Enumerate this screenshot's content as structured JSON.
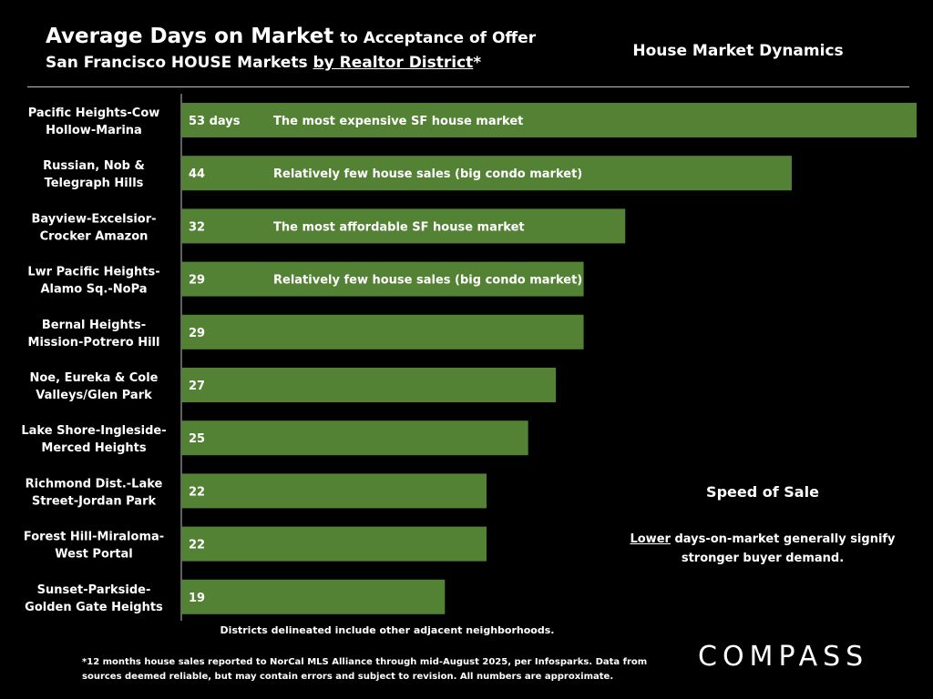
{
  "header": {
    "title_bold": "Average Days on Market",
    "title_rest": "to Acceptance of Offer",
    "subtitle_prefix": "San Francisco HOUSE Markets",
    "subtitle_link": "by Realtor District",
    "subtitle_suffix": "*",
    "right_heading": "House Market Dynamics"
  },
  "colors": {
    "bar": "#548235",
    "background": "#000000",
    "text": "#ffffff"
  },
  "chart_data": {
    "type": "bar",
    "orientation": "horizontal",
    "categories": [
      [
        "Pacific Heights-Cow",
        "Hollow-Marina"
      ],
      [
        "Russian, Nob &",
        "Telegraph Hills"
      ],
      [
        "Bayview-Excelsior-",
        "Crocker Amazon"
      ],
      [
        "Lwr Pacific Heights-",
        "Alamo Sq.-NoPa"
      ],
      [
        "Bernal Heights-",
        "Mission-Potrero Hill"
      ],
      [
        "Noe, Eureka & Cole",
        "Valleys/Glen Park"
      ],
      [
        "Lake Shore-Ingleside-",
        "Merced Heights"
      ],
      [
        "Richmond Dist.-Lake",
        "Street-Jordan Park"
      ],
      [
        "Forest Hill-Miraloma-",
        "West Portal"
      ],
      [
        "Sunset-Parkside-",
        "Golden Gate Heights"
      ]
    ],
    "values": [
      53,
      44,
      32,
      29,
      29,
      27,
      25,
      22,
      22,
      19
    ],
    "value_labels": [
      "53 days",
      "44",
      "32",
      "29",
      "29",
      "27",
      "25",
      "22",
      "22",
      "19"
    ],
    "annotations": [
      "The most expensive SF house market",
      "Relatively few house sales (big condo market)",
      "The most affordable SF house market",
      "Relatively few house sales (big condo market)",
      "",
      "",
      "",
      "",
      "",
      ""
    ],
    "xlim": [
      0,
      53
    ]
  },
  "side_note": {
    "title": "Speed of Sale",
    "emphasis": "Lower",
    "text": " days-on-market generally signify stronger buyer demand."
  },
  "districts_note": "Districts delineated include other adjacent neighborhoods.",
  "footnote": "*12 months house sales reported to NorCal MLS Alliance through mid-August 2025, per Infosparks. Data from sources deemed reliable, but may contain errors and subject to revision. All numbers are approximate.",
  "logo": "COMPASS"
}
